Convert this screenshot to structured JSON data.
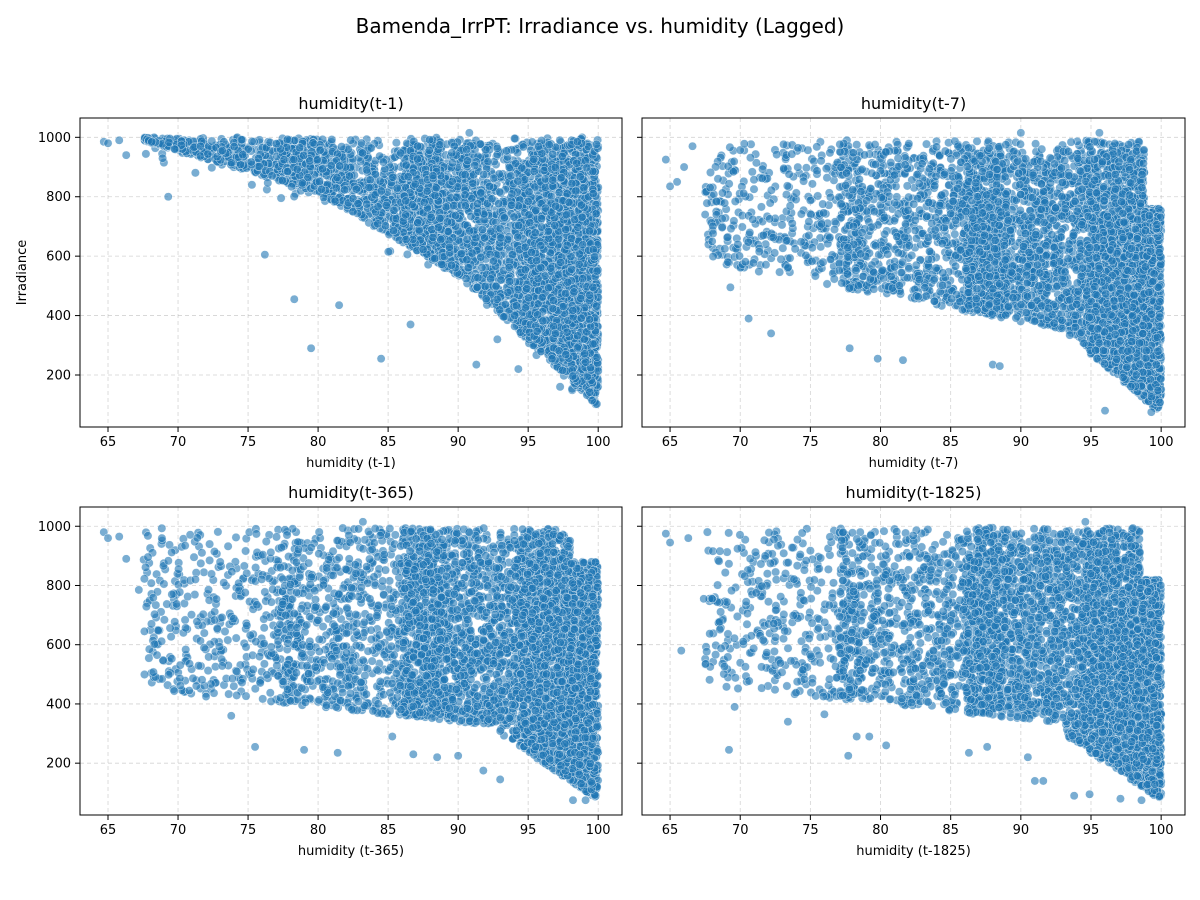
{
  "figure": {
    "suptitle": "Bamenda_IrrPT: Irradiance vs. humidity (Lagged)"
  },
  "style": {
    "point_color": "#1f77b4",
    "point_alpha": 0.6,
    "point_edge": "#ffffff",
    "grid_color": "#b0b0b0",
    "grid_dash": true
  },
  "chart_data": [
    {
      "type": "scatter",
      "title": "humidity(t-1)",
      "xlabel": "humidity (t-1)",
      "ylabel": "Irradiance",
      "xlim": [
        63,
        101.7
      ],
      "ylim": [
        25,
        1065
      ],
      "xticks": [
        65,
        70,
        75,
        80,
        85,
        90,
        95,
        100
      ],
      "yticks": [
        200,
        400,
        600,
        800,
        1000
      ],
      "grid": true,
      "pattern": "lag1",
      "outliers": [
        [
          64.7,
          985
        ],
        [
          65.0,
          980
        ],
        [
          65.8,
          990
        ],
        [
          66.3,
          940
        ],
        [
          69.3,
          800
        ],
        [
          76.2,
          605
        ],
        [
          78.3,
          455
        ],
        [
          79.5,
          290
        ],
        [
          81.5,
          435
        ],
        [
          84.5,
          255
        ],
        [
          86.6,
          370
        ],
        [
          91.3,
          235
        ],
        [
          92.8,
          320
        ],
        [
          94.3,
          220
        ],
        [
          90.8,
          1015
        ]
      ]
    },
    {
      "type": "scatter",
      "title": "humidity(t-7)",
      "xlabel": "humidity (t-7)",
      "ylabel": "",
      "xlim": [
        63,
        101.7
      ],
      "ylim": [
        25,
        1065
      ],
      "xticks": [
        65,
        70,
        75,
        80,
        85,
        90,
        95,
        100
      ],
      "yticks": [
        200,
        400,
        600,
        800,
        1000
      ],
      "grid": true,
      "pattern": "lag7",
      "outliers": [
        [
          64.7,
          925
        ],
        [
          65.0,
          835
        ],
        [
          65.5,
          850
        ],
        [
          66.0,
          900
        ],
        [
          66.6,
          970
        ],
        [
          67.5,
          740
        ],
        [
          68.0,
          650
        ],
        [
          69.3,
          495
        ],
        [
          70.6,
          390
        ],
        [
          72.2,
          340
        ],
        [
          77.8,
          290
        ],
        [
          79.8,
          255
        ],
        [
          81.6,
          250
        ],
        [
          88.0,
          235
        ],
        [
          88.5,
          230
        ],
        [
          90.0,
          1015
        ],
        [
          95.6,
          1015
        ],
        [
          96.0,
          80
        ],
        [
          99.3,
          75
        ]
      ]
    },
    {
      "type": "scatter",
      "title": "humidity(t-365)",
      "xlabel": "humidity (t-365)",
      "ylabel": "",
      "xlim": [
        63,
        101.7
      ],
      "ylim": [
        25,
        1065
      ],
      "xticks": [
        65,
        70,
        75,
        80,
        85,
        90,
        95,
        100
      ],
      "yticks": [
        200,
        400,
        600,
        800,
        1000
      ],
      "grid": true,
      "pattern": "lag365",
      "outliers": [
        [
          64.7,
          980
        ],
        [
          65.0,
          960
        ],
        [
          65.8,
          965
        ],
        [
          66.3,
          890
        ],
        [
          67.2,
          785
        ],
        [
          67.6,
          645
        ],
        [
          68.5,
          565
        ],
        [
          70.8,
          445
        ],
        [
          72.0,
          425
        ],
        [
          73.8,
          360
        ],
        [
          75.5,
          255
        ],
        [
          79.0,
          245
        ],
        [
          81.4,
          235
        ],
        [
          85.3,
          290
        ],
        [
          86.8,
          230
        ],
        [
          88.5,
          220
        ],
        [
          90.0,
          225
        ],
        [
          91.8,
          175
        ],
        [
          93.0,
          145
        ],
        [
          83.2,
          1015
        ],
        [
          98.2,
          75
        ],
        [
          99.1,
          75
        ]
      ]
    },
    {
      "type": "scatter",
      "title": "humidity(t-1825)",
      "xlabel": "humidity (t-1825)",
      "ylabel": "",
      "xlim": [
        63,
        101.7
      ],
      "ylim": [
        25,
        1065
      ],
      "xticks": [
        65,
        70,
        75,
        80,
        85,
        90,
        95,
        100
      ],
      "yticks": [
        200,
        400,
        600,
        800,
        1000
      ],
      "grid": true,
      "pattern": "lag1825",
      "outliers": [
        [
          64.7,
          975
        ],
        [
          65.0,
          945
        ],
        [
          65.8,
          580
        ],
        [
          66.3,
          960
        ],
        [
          67.4,
          755
        ],
        [
          68.0,
          755
        ],
        [
          69.2,
          245
        ],
        [
          69.6,
          390
        ],
        [
          73.4,
          340
        ],
        [
          76.0,
          365
        ],
        [
          77.7,
          225
        ],
        [
          78.3,
          290
        ],
        [
          79.2,
          290
        ],
        [
          80.4,
          260
        ],
        [
          86.3,
          235
        ],
        [
          87.6,
          255
        ],
        [
          90.5,
          220
        ],
        [
          91.0,
          140
        ],
        [
          91.6,
          140
        ],
        [
          93.8,
          90
        ],
        [
          94.9,
          95
        ],
        [
          94.6,
          1015
        ],
        [
          97.1,
          80
        ],
        [
          98.6,
          75
        ]
      ]
    }
  ]
}
